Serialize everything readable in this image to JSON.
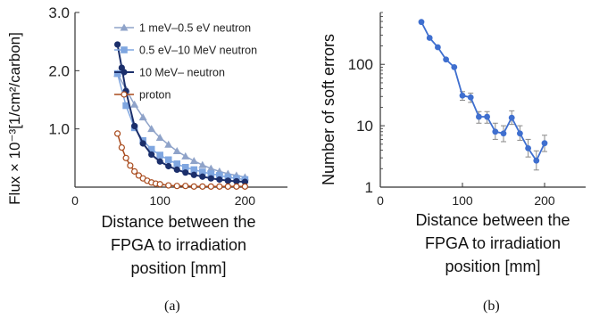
{
  "charts": [
    {
      "panel_label": "(a)",
      "ylabel": "Flux × 10⁻³[1/cm²/carbon]",
      "xlabel_lines": [
        "Distance between the",
        "FPGA to irradiation",
        "position [mm]"
      ]
    },
    {
      "panel_label": "(b)",
      "ylabel": "Number of soft errors",
      "xlabel_lines": [
        "Distance between the",
        "FPGA to irradiation",
        "position [mm]"
      ]
    }
  ],
  "colors": {
    "s1": "#8fa3c9",
    "s2": "#7fa6e0",
    "s3": "#1b2f6b",
    "s4": "#a84a1c",
    "b": "#3f6fcf",
    "axis": "#333333",
    "err": "#888888"
  },
  "chart_data": [
    {
      "type": "line",
      "xlim": [
        0,
        250
      ],
      "ylim": [
        0,
        3.0
      ],
      "xticks": [
        0,
        100,
        200
      ],
      "xtick_labels": [
        "0",
        "100",
        "200"
      ],
      "yticks": [
        1.0,
        2.0,
        3.0
      ],
      "ytick_labels": [
        "1.0",
        "2.0",
        "3.0"
      ],
      "grid": false,
      "legend_position": "top-right",
      "series": [
        {
          "name": "1 meV–0.5 eV neutron",
          "marker": "triangle",
          "x": [
            50,
            60,
            70,
            80,
            90,
            100,
            110,
            120,
            130,
            140,
            150,
            160,
            170,
            180,
            190,
            200
          ],
          "y": [
            1.95,
            1.68,
            1.42,
            1.2,
            1.0,
            0.85,
            0.73,
            0.62,
            0.53,
            0.45,
            0.38,
            0.32,
            0.27,
            0.23,
            0.2,
            0.17
          ]
        },
        {
          "name": "0.5 eV–10 MeV neutron",
          "marker": "square",
          "x": [
            50,
            60,
            70,
            80,
            90,
            100,
            110,
            120,
            130,
            140,
            150,
            160,
            170,
            180,
            190,
            200
          ],
          "y": [
            1.95,
            1.4,
            1.02,
            0.8,
            0.65,
            0.55,
            0.47,
            0.4,
            0.34,
            0.3,
            0.26,
            0.23,
            0.2,
            0.17,
            0.15,
            0.13
          ]
        },
        {
          "name": "10 MeV– neutron",
          "marker": "circle",
          "x": [
            50,
            55,
            60,
            70,
            80,
            90,
            100,
            110,
            120,
            130,
            140,
            150,
            160,
            170,
            180,
            190,
            200
          ],
          "y": [
            2.45,
            2.05,
            1.65,
            1.05,
            0.75,
            0.56,
            0.44,
            0.36,
            0.3,
            0.25,
            0.21,
            0.18,
            0.15,
            0.13,
            0.11,
            0.1,
            0.09
          ]
        },
        {
          "name": "proton",
          "marker": "circle-open",
          "x": [
            50,
            55,
            60,
            65,
            70,
            75,
            80,
            85,
            90,
            95,
            100,
            110,
            120,
            130,
            140,
            150,
            160,
            170,
            180,
            190,
            200
          ],
          "y": [
            0.92,
            0.68,
            0.5,
            0.37,
            0.27,
            0.2,
            0.15,
            0.11,
            0.08,
            0.06,
            0.05,
            0.03,
            0.02,
            0.02,
            0.01,
            0.01,
            0.01,
            0.01,
            0.01,
            0.01,
            0.01
          ]
        }
      ]
    },
    {
      "type": "line",
      "xscale": "linear",
      "yscale": "log",
      "xlim": [
        0,
        250
      ],
      "ylim": [
        1,
        700
      ],
      "xticks": [
        0,
        100,
        200
      ],
      "xtick_labels": [
        "0",
        "100",
        "200"
      ],
      "yticks": [
        1,
        10,
        100
      ],
      "ytick_labels": [
        "1",
        "10",
        "100"
      ],
      "grid": false,
      "series": [
        {
          "marker": "circle",
          "x": [
            50,
            60,
            70,
            80,
            90,
            100,
            110,
            120,
            130,
            140,
            150,
            160,
            170,
            180,
            190,
            200
          ],
          "y": [
            490,
            270,
            190,
            120,
            90,
            31,
            29,
            14,
            14,
            8,
            7.5,
            13.5,
            7.5,
            4.3,
            2.7,
            5.2
          ],
          "err_low": [
            490,
            270,
            190,
            120,
            90,
            26,
            24,
            11,
            11,
            6,
            5.5,
            10.5,
            5.8,
            3.1,
            1.9,
            3.8
          ],
          "err_high": [
            490,
            270,
            190,
            120,
            90,
            36,
            34,
            17,
            17,
            11,
            10,
            17.5,
            10,
            6,
            3.9,
            7
          ]
        }
      ]
    }
  ]
}
